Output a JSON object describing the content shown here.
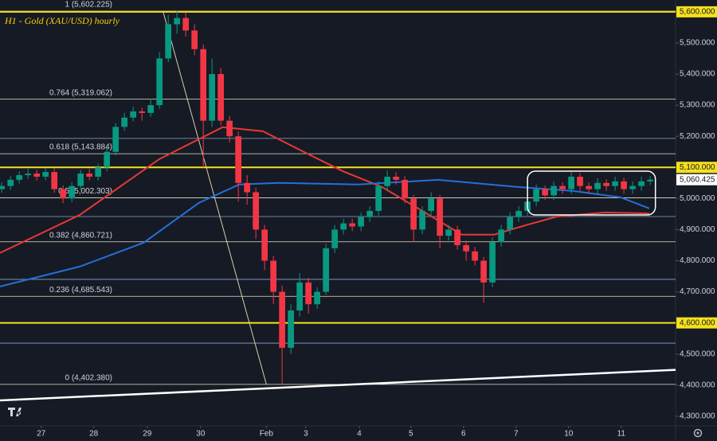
{
  "chart_data": {
    "type": "candlestick",
    "title": "H1 - Gold (XAU/USD) hourly",
    "xlim": [
      -0.2,
      76.9
    ],
    "ylim": [
      4269,
      5638
    ],
    "xticks": [
      {
        "value": 4.5,
        "label": "27"
      },
      {
        "value": 10.5,
        "label": "28"
      },
      {
        "value": 16.6,
        "label": "29"
      },
      {
        "value": 22.7,
        "label": "30"
      },
      {
        "value": 30.2,
        "label": "Feb"
      },
      {
        "value": 34.7,
        "label": "3"
      },
      {
        "value": 40.8,
        "label": "4"
      },
      {
        "value": 46.7,
        "label": "5"
      },
      {
        "value": 52.7,
        "label": "6"
      },
      {
        "value": 58.7,
        "label": "7"
      },
      {
        "value": 64.7,
        "label": "10"
      },
      {
        "value": 70.7,
        "label": "11"
      }
    ],
    "yticks": [
      {
        "value": 4300,
        "label": "4,300.000"
      },
      {
        "value": 4400,
        "label": "4,400.000"
      },
      {
        "value": 4500,
        "label": "4,500.000"
      },
      {
        "value": 4600,
        "label": "4,600.000"
      },
      {
        "value": 4700,
        "label": "4,700.000"
      },
      {
        "value": 4800,
        "label": "4,800.000"
      },
      {
        "value": 4900,
        "label": "4,900.000"
      },
      {
        "value": 5000,
        "label": "5,000.000"
      },
      {
        "value": 5100,
        "label": "5,100.000"
      },
      {
        "value": 5200,
        "label": "5,200.000"
      },
      {
        "value": 5300,
        "label": "5,300.000"
      },
      {
        "value": 5400,
        "label": "5,400.000"
      },
      {
        "value": 5500,
        "label": "5,500.000"
      },
      {
        "value": 5600,
        "label": "5,600.000"
      }
    ],
    "up_color": "#089981",
    "down_color": "#f23645",
    "candles": [
      [
        5030,
        5052,
        5018,
        5040
      ],
      [
        5040,
        5072,
        5028,
        5060
      ],
      [
        5060,
        5087,
        5048,
        5075
      ],
      [
        5075,
        5095,
        5063,
        5080
      ],
      [
        5080,
        5092,
        5058,
        5070
      ],
      [
        5070,
        5097,
        5058,
        5085
      ],
      [
        5085,
        5097,
        5018,
        5030
      ],
      [
        5030,
        5042,
        4985,
        5000
      ],
      [
        5000,
        5052,
        4988,
        5040
      ],
      [
        5040,
        5092,
        5028,
        5080
      ],
      [
        5080,
        5095,
        5058,
        5070
      ],
      [
        5070,
        5112,
        5058,
        5100
      ],
      [
        5100,
        5162,
        5088,
        5150
      ],
      [
        5150,
        5242,
        5138,
        5230
      ],
      [
        5230,
        5275,
        5218,
        5260
      ],
      [
        5260,
        5295,
        5248,
        5280
      ],
      [
        5280,
        5292,
        5250,
        5275
      ],
      [
        5275,
        5320,
        5263,
        5300
      ],
      [
        5300,
        5470,
        5288,
        5450
      ],
      [
        5450,
        5590,
        5438,
        5560
      ],
      [
        5560,
        5602.225,
        5530,
        5580
      ],
      [
        5580,
        5598,
        5520,
        5540
      ],
      [
        5540,
        5560,
        5460,
        5480
      ],
      [
        5480,
        5495,
        5100,
        5250
      ],
      [
        5250,
        5450,
        5230,
        5400
      ],
      [
        5400,
        5420,
        5235,
        5250
      ],
      [
        5250,
        5265,
        5180,
        5200
      ],
      [
        5200,
        5215,
        4990,
        5050
      ],
      [
        5050,
        5075,
        4980,
        5020
      ],
      [
        5020,
        5035,
        4870,
        4900
      ],
      [
        4900,
        4915,
        4770,
        4800
      ],
      [
        4800,
        4815,
        4660,
        4700
      ],
      [
        4700,
        4720,
        4402.38,
        4520
      ],
      [
        4520,
        4660,
        4500,
        4640
      ],
      [
        4640,
        4760,
        4620,
        4730
      ],
      [
        4730,
        4745,
        4630,
        4660
      ],
      [
        4660,
        4715,
        4645,
        4700
      ],
      [
        4700,
        4855,
        4690,
        4840
      ],
      [
        4840,
        4915,
        4825,
        4900
      ],
      [
        4900,
        4935,
        4885,
        4920
      ],
      [
        4920,
        4935,
        4895,
        4910
      ],
      [
        4910,
        4955,
        4895,
        4940
      ],
      [
        4940,
        4975,
        4925,
        4960
      ],
      [
        4960,
        5055,
        4945,
        5040
      ],
      [
        5040,
        5090,
        5025,
        5070
      ],
      [
        5070,
        5085,
        5045,
        5060
      ],
      [
        5060,
        5072,
        4985,
        5000
      ],
      [
        5000,
        5012,
        4860,
        4900
      ],
      [
        4900,
        4975,
        4885,
        4960
      ],
      [
        4960,
        5020,
        4945,
        5000
      ],
      [
        5000,
        5012,
        4840,
        4880
      ],
      [
        4880,
        4915,
        4865,
        4900
      ],
      [
        4900,
        4912,
        4835,
        4850
      ],
      [
        4850,
        4865,
        4800,
        4830
      ],
      [
        4830,
        4845,
        4785,
        4800
      ],
      [
        4800,
        4812,
        4665,
        4730
      ],
      [
        4730,
        4875,
        4715,
        4860
      ],
      [
        4860,
        4915,
        4845,
        4900
      ],
      [
        4900,
        4955,
        4885,
        4940
      ],
      [
        4940,
        4975,
        4925,
        4960
      ],
      [
        4960,
        5005,
        4945,
        4990
      ],
      [
        4990,
        5045,
        4975,
        5030
      ],
      [
        5030,
        5042,
        4995,
        5010
      ],
      [
        5010,
        5055,
        4995,
        5040
      ],
      [
        5040,
        5052,
        5015,
        5030
      ],
      [
        5030,
        5085,
        5015,
        5070
      ],
      [
        5070,
        5082,
        5025,
        5040
      ],
      [
        5040,
        5052,
        5015,
        5030
      ],
      [
        5030,
        5065,
        5015,
        5050
      ],
      [
        5050,
        5062,
        5025,
        5040
      ],
      [
        5040,
        5070,
        5025,
        5055
      ],
      [
        5055,
        5067,
        5015,
        5030
      ],
      [
        5030,
        5055,
        5015,
        5040
      ],
      [
        5040,
        5070,
        5025,
        5055
      ],
      [
        5055,
        5072,
        5043,
        5060.425
      ]
    ],
    "series": [
      {
        "color": "#e53935",
        "x": [
          -0.2,
          8.9,
          18,
          25.2,
          29.8,
          34.3,
          38.9,
          43.4,
          48,
          52.5,
          56.2,
          59.8,
          63.4,
          68.9,
          73.9
        ],
        "values": [
          4825,
          4947,
          5127,
          5229,
          5216,
          5152,
          5088,
          5037,
          4960,
          4884,
          4884,
          4914,
          4942,
          4955,
          4952
        ]
      },
      {
        "color": "#2370d8",
        "x": [
          -0.2,
          8.9,
          16.2,
          22.5,
          27.1,
          31.6,
          40.7,
          49.8,
          58.9,
          65.2,
          70.6,
          73.9
        ],
        "values": [
          4717,
          4781,
          4858,
          4986,
          5045,
          5050,
          5045,
          5060,
          5037,
          5024,
          5004,
          4968
        ]
      }
    ],
    "key_levels": [
      5600,
      5100,
      4600
    ],
    "key_color": "#f5e11d",
    "levels": [
      5193,
      4942,
      4740,
      4535
    ],
    "fib": [
      {
        "value": 5602.225,
        "label": "1 (5,602.225)"
      },
      {
        "value": 5319.062,
        "label": "0.764 (5,319.062)"
      },
      {
        "value": 5143.884,
        "label": "0.618 (5,143.884)"
      },
      {
        "value": 5002.303,
        "label": "0.5 (5,002.303)"
      },
      {
        "value": 4860.721,
        "label": "0.382 (4,860.721)"
      },
      {
        "value": 4685.543,
        "label": "0.236 (4,685.543)"
      },
      {
        "value": 4402.38,
        "label": "0 (4,402.380)"
      }
    ],
    "fib_anchor_x": [
      18.4,
      30.2
    ],
    "trendline": {
      "x": [
        -0.2,
        76.9
      ],
      "y": [
        4351,
        4449
      ]
    },
    "box": {
      "x": [
        60,
        74.6
      ],
      "y": [
        5088,
        4947
      ]
    },
    "last_price": {
      "value": 5060.425,
      "label": "5,060.425"
    }
  }
}
